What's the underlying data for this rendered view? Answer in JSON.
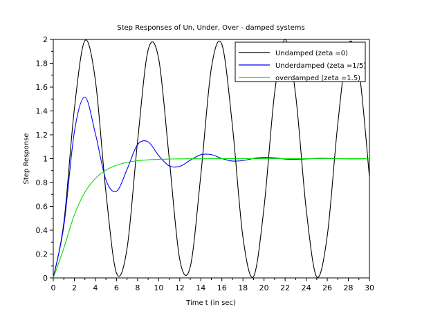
{
  "chart_data": {
    "type": "line",
    "title": "Step Responses of Un, Under, Over - damped systems",
    "xlabel": "Time t (in sec)",
    "ylabel": "Step Response",
    "xlim": [
      0,
      30
    ],
    "ylim": [
      0,
      2
    ],
    "xticks": [
      0,
      2,
      4,
      6,
      8,
      10,
      12,
      14,
      16,
      18,
      20,
      22,
      24,
      26,
      28,
      30
    ],
    "yticks": [
      0,
      0.2,
      0.4,
      0.6,
      0.8,
      1,
      1.2,
      1.4,
      1.6,
      1.8,
      2
    ],
    "xtick_labels": [
      "0",
      "2",
      "4",
      "6",
      "8",
      "10",
      "12",
      "14",
      "16",
      "18",
      "20",
      "22",
      "24",
      "26",
      "28",
      "30"
    ],
    "ytick_labels": [
      "0",
      "0.2",
      "0.4",
      "0.6",
      "0.8",
      "1",
      "1.2",
      "1.4",
      "1.6",
      "1.8",
      "2"
    ],
    "grid": false,
    "legend_position": "top-right",
    "x": [
      0,
      1,
      2,
      3,
      4,
      5,
      6,
      7,
      8,
      9,
      10,
      11,
      12,
      13,
      14,
      15,
      16,
      17,
      18,
      19,
      20,
      21,
      22,
      23,
      24,
      25,
      26,
      27,
      28,
      29,
      30
    ],
    "series": [
      {
        "name": "Undamped (zeta =0)",
        "color": "#000000",
        "values": [
          0,
          0.46,
          1.416,
          1.99,
          1.654,
          0.716,
          0.04,
          0.246,
          1.146,
          1.911,
          1.839,
          1.004,
          0.156,
          0.093,
          0.863,
          1.76,
          1.958,
          1.275,
          0.34,
          0.011,
          0.592,
          1.548,
          1.999,
          1.533,
          0.577,
          0.009,
          0.354,
          1.293,
          1.962,
          1.747,
          0.846
        ]
      },
      {
        "name": "Underdamped (zeta =1/5)",
        "color": "#0000ff",
        "values": [
          0,
          0.434,
          1.224,
          1.516,
          1.209,
          0.821,
          0.727,
          0.91,
          1.118,
          1.141,
          1.026,
          0.94,
          0.935,
          0.987,
          1.033,
          1.034,
          1.001,
          0.98,
          0.984,
          1.002,
          1.011,
          1.006,
          0.997,
          0.995,
          0.998,
          1.002,
          1.002,
          1.0,
          0.999,
          0.999,
          1.0
        ]
      },
      {
        "name": "overdamped (zeta =1.5)",
        "color": "#00dd00",
        "values": [
          0,
          0.249,
          0.528,
          0.718,
          0.835,
          0.904,
          0.945,
          0.968,
          0.982,
          0.99,
          0.994,
          0.997,
          0.998,
          0.999,
          0.999,
          1.0,
          1.0,
          1.0,
          1.0,
          1.0,
          1.0,
          1.0,
          1.0,
          1.0,
          1.0,
          1.0,
          1.0,
          1.0,
          1.0,
          1.0,
          1.0
        ]
      }
    ]
  }
}
